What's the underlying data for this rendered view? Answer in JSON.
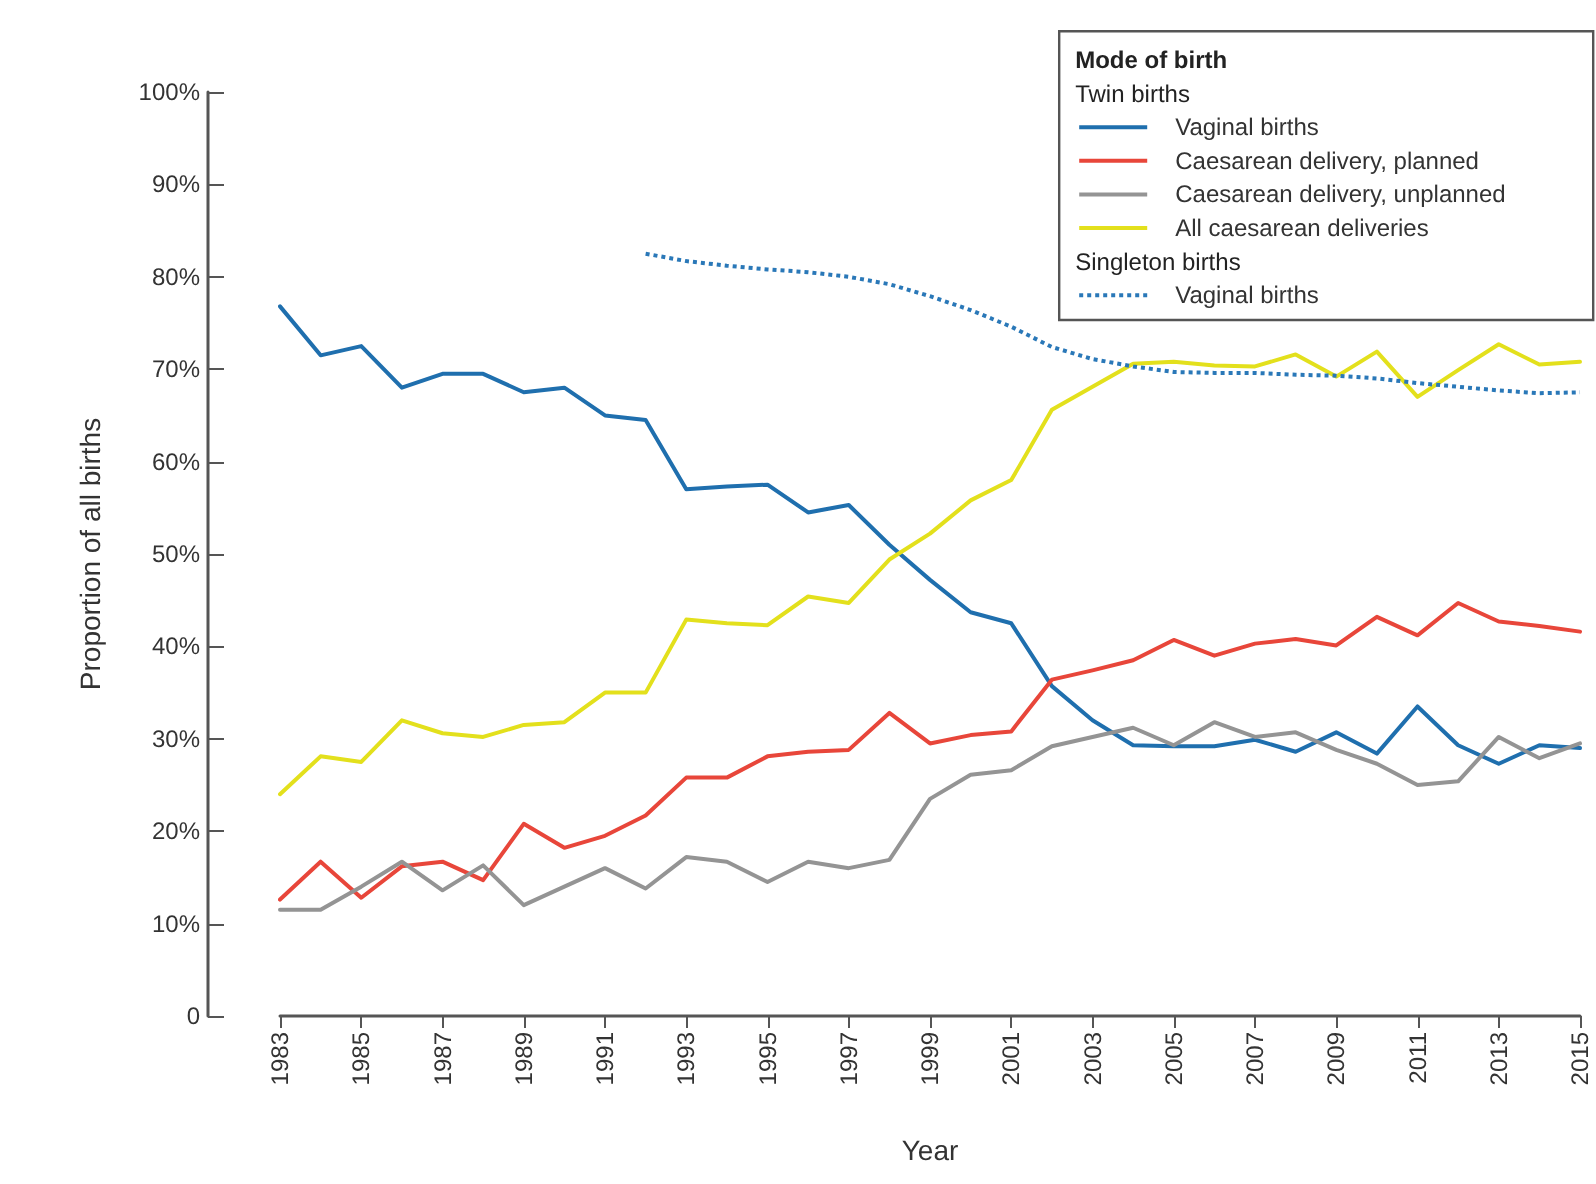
{
  "chart_data": {
    "type": "line",
    "xlabel": "Year",
    "ylabel": "Proportion of all births",
    "legend_title": "Mode of birth",
    "annotations": [
      "Twin births",
      "Singleton births"
    ],
    "x": [
      1983,
      1984,
      1985,
      1986,
      1987,
      1988,
      1989,
      1990,
      1991,
      1992,
      1993,
      1994,
      1995,
      1996,
      1997,
      1998,
      1999,
      2000,
      2001,
      2002,
      2003,
      2004,
      2005,
      2006,
      2007,
      2008,
      2009,
      2010,
      2011,
      2012,
      2013,
      2014,
      2015
    ],
    "series": [
      {
        "name": "Vaginal births",
        "color": "#1f6fae",
        "values": [
          76.8,
          71.5,
          72.5,
          68,
          69.5,
          69.5,
          67.5,
          68,
          65,
          64.5,
          57,
          57.3,
          57.5,
          54.5,
          55.3,
          51,
          47.2,
          43.7,
          42.5,
          35.7,
          32,
          29.3,
          29.2,
          29.2,
          29.9,
          28.6,
          30.7,
          28.4,
          33.5,
          29.3,
          27.3,
          29.3,
          29
        ]
      },
      {
        "name": "Caesarean delivery, planned",
        "color": "#e8463a",
        "values": [
          12.6,
          16.7,
          12.8,
          16.2,
          16.7,
          14.7,
          20.8,
          18.2,
          19.5,
          21.7,
          25.8,
          25.8,
          28.1,
          28.6,
          28.8,
          32.8,
          29.5,
          30.4,
          30.8,
          36.4,
          37.4,
          38.5,
          40.7,
          39,
          40.3,
          40.8,
          40.1,
          43.2,
          41.2,
          44.7,
          42.7,
          42.2,
          41.6
        ]
      },
      {
        "name": "Caesarean delivery, unplanned",
        "color": "#949494",
        "values": [
          11.5,
          11.5,
          14,
          16.7,
          13.6,
          16.3,
          12,
          14,
          16,
          13.8,
          17.2,
          16.7,
          14.5,
          16.7,
          16,
          16.9,
          23.5,
          26.1,
          26.6,
          29.2,
          30.2,
          31.2,
          29.3,
          31.8,
          30.2,
          30.7,
          28.8,
          27.3,
          25,
          25.4,
          30.2,
          27.9,
          29.5
        ]
      },
      {
        "name": "All caesarean deliveries",
        "color": "#e3e01c",
        "values": [
          24,
          28.1,
          27.5,
          32,
          30.6,
          30.2,
          31.5,
          31.8,
          35,
          35,
          42.9,
          42.5,
          42.3,
          45.4,
          44.7,
          49.4,
          52.2,
          55.8,
          58,
          65.6,
          68.1,
          70.6,
          70.8,
          70.4,
          70.3,
          71.6,
          69.2,
          71.9,
          67,
          69.9,
          72.7,
          70.5,
          70.8
        ]
      },
      {
        "name": "Vaginal births",
        "color": "#2a78b8",
        "line_style": "dotted",
        "values": [
          null,
          null,
          null,
          null,
          null,
          null,
          null,
          null,
          null,
          82.5,
          81.7,
          81.2,
          80.8,
          80.5,
          80,
          79.2,
          77.9,
          76.4,
          74.6,
          72.4,
          71.1,
          70.3,
          69.7,
          69.6,
          69.6,
          69.4,
          69.3,
          69,
          68.5,
          68.1,
          67.7,
          67.4,
          67.5
        ]
      }
    ],
    "xlim": [
      1983,
      2015
    ],
    "xticks": [
      1983,
      1985,
      1987,
      1989,
      1991,
      1993,
      1995,
      1997,
      1999,
      2001,
      2003,
      2005,
      2007,
      2009,
      2011,
      2013,
      2015
    ],
    "ylim": [
      0,
      100
    ],
    "yticks": [
      0,
      {
        "value": 10,
        "label": "10%"
      },
      {
        "value": 20,
        "label": "20%"
      },
      {
        "value": 30,
        "label": "30%"
      },
      {
        "value": 40,
        "label": "40%"
      },
      {
        "value": 50,
        "label": "50%"
      },
      {
        "value": 60,
        "label": "60%"
      },
      {
        "value": 70,
        "label": "70%"
      },
      {
        "value": 80,
        "label": "80%"
      },
      {
        "value": 90,
        "label": "90%"
      },
      {
        "value": 100,
        "label": "100%"
      }
    ],
    "grid": false,
    "legend": "top right",
    "marker": "none",
    "line_style": "solid"
  }
}
